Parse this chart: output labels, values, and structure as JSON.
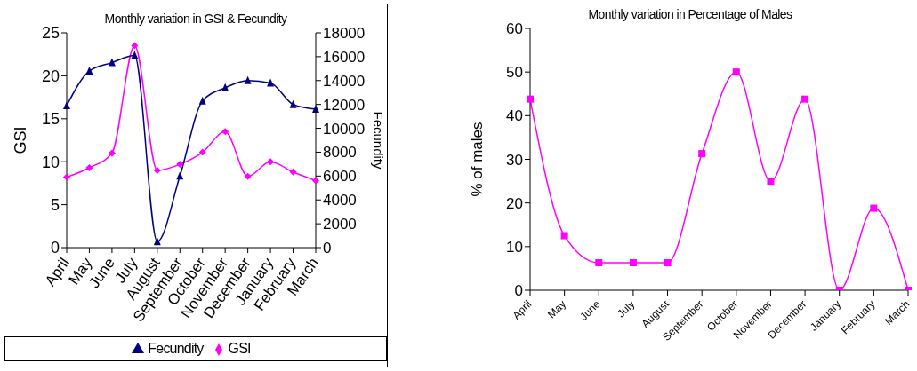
{
  "chart_data": [
    {
      "type": "line",
      "title": "Monthly variation in GSI & Fecundity",
      "ylabel": "GSI",
      "y2label": "Fecundity",
      "categories": [
        "April",
        "May",
        "June",
        "July",
        "August",
        "September",
        "October",
        "November",
        "December",
        "January",
        "February",
        "March"
      ],
      "series": [
        {
          "name": "GSI",
          "color": "#ff00ff",
          "marker": "diamond",
          "values": [
            8.2,
            9.3,
            11,
            23.5,
            9,
            9.7,
            11.1,
            13.5,
            8.3,
            10,
            8.8,
            7.8
          ]
        },
        {
          "name": "Fecundity",
          "color": "#000080",
          "marker": "triangle",
          "axis": "y2",
          "values": [
            11900,
            14800,
            15500,
            16100,
            500,
            6000,
            12300,
            13400,
            14000,
            13800,
            12000,
            11600
          ]
        }
      ],
      "ylim": [
        0,
        25
      ],
      "yticks": [
        0,
        5,
        10,
        15,
        20,
        25
      ],
      "y2lim": [
        0,
        18000
      ],
      "y2ticks": [
        0,
        2000,
        4000,
        6000,
        8000,
        10000,
        12000,
        14000,
        16000,
        18000
      ],
      "legend": "bottom",
      "grid": false
    },
    {
      "type": "line",
      "title": "Monthly variation in Percentage of Males",
      "ylabel": "% of males",
      "categories": [
        "April",
        "May",
        "June",
        "July",
        "August",
        "September",
        "October",
        "November",
        "December",
        "January",
        "February",
        "March"
      ],
      "series": [
        {
          "color": "#ff00ff",
          "marker": "square",
          "values": [
            43.8,
            12.5,
            6.3,
            6.3,
            6.3,
            31.3,
            50,
            25,
            43.8,
            0,
            18.8,
            0
          ]
        }
      ],
      "ylim": [
        0,
        60
      ],
      "yticks": [
        0,
        10,
        20,
        30,
        40,
        50,
        60
      ],
      "grid": false
    }
  ]
}
